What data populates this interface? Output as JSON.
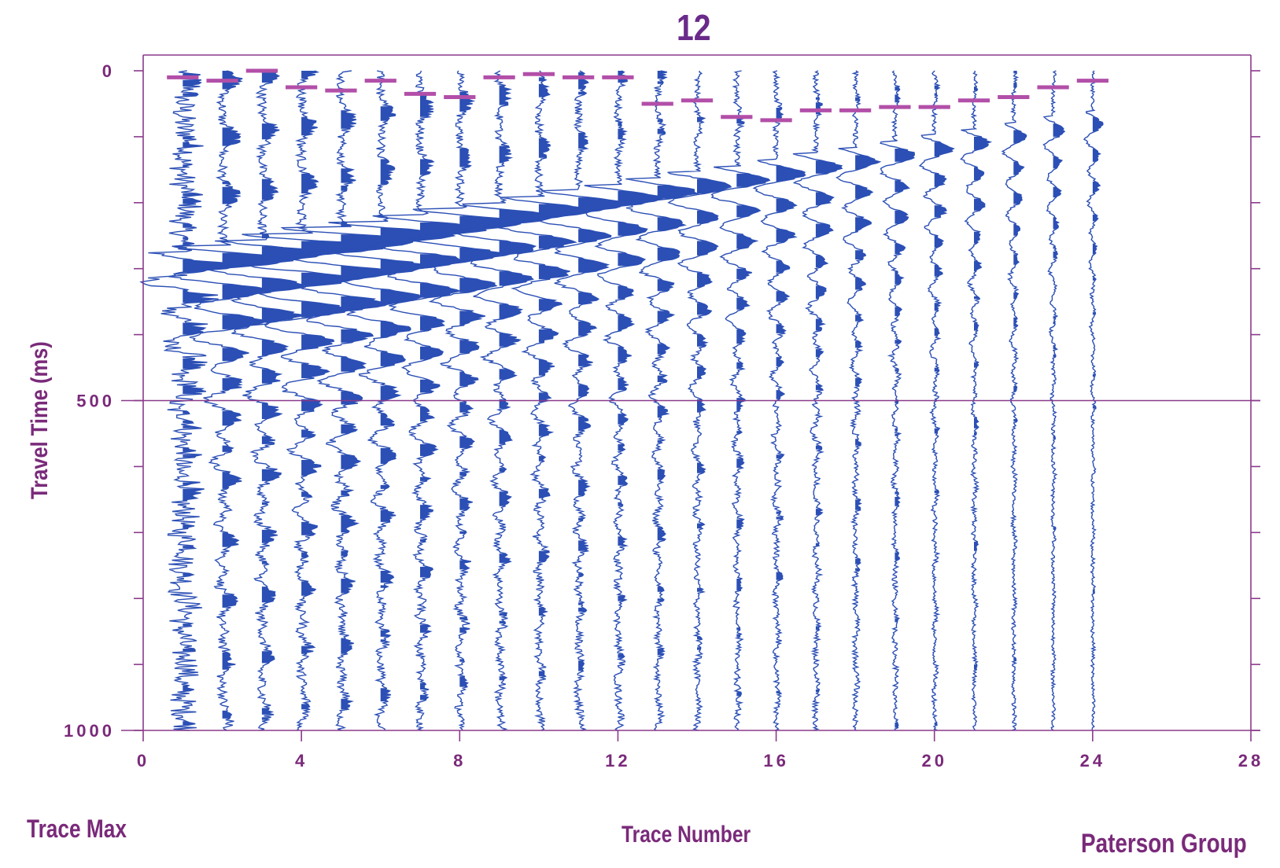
{
  "chart_data": {
    "type": "seismogram",
    "title": "12",
    "xlabel": "Trace Number",
    "ylabel": "Travel Time (ms)",
    "bottom_left_text": "Trace Max",
    "bottom_right_text": "Paterson Group",
    "x_range": [
      0,
      28
    ],
    "x_ticks": [
      0,
      4,
      8,
      12,
      16,
      20,
      24,
      28
    ],
    "y_range": [
      0,
      1000
    ],
    "y_inverted": true,
    "y_tick_labels": [
      0,
      500,
      1000
    ],
    "y_minor_ticks": [
      100,
      200,
      300,
      400,
      600,
      700,
      800,
      900
    ],
    "reference_line_ms": 500,
    "traces": [
      1,
      2,
      3,
      4,
      5,
      6,
      7,
      8,
      9,
      10,
      11,
      12,
      13,
      14,
      15,
      16,
      17,
      18,
      19,
      20,
      21,
      22,
      23,
      24
    ],
    "first_break_picks_ms": [
      {
        "trace": 1,
        "time": 10
      },
      {
        "trace": 2,
        "time": 15
      },
      {
        "trace": 3,
        "time": 0
      },
      {
        "trace": 4,
        "time": 25
      },
      {
        "trace": 5,
        "time": 30
      },
      {
        "trace": 6,
        "time": 15
      },
      {
        "trace": 7,
        "time": 35
      },
      {
        "trace": 8,
        "time": 40
      },
      {
        "trace": 9,
        "time": 10
      },
      {
        "trace": 10,
        "time": 5
      },
      {
        "trace": 11,
        "time": 10
      },
      {
        "trace": 12,
        "time": 10
      },
      {
        "trace": 13,
        "time": 50
      },
      {
        "trace": 14,
        "time": 45
      },
      {
        "trace": 15,
        "time": 70
      },
      {
        "trace": 16,
        "time": 75
      },
      {
        "trace": 17,
        "time": 60
      },
      {
        "trace": 18,
        "time": 60
      },
      {
        "trace": 19,
        "time": 55
      },
      {
        "trace": 20,
        "time": 55
      },
      {
        "trace": 21,
        "time": 45
      },
      {
        "trace": 22,
        "time": 40
      },
      {
        "trace": 23,
        "time": 25
      },
      {
        "trace": 24,
        "time": 15
      }
    ],
    "colors": {
      "trace": "#2b4fb5",
      "axis": "#8a3a8a",
      "picks": "#b24fa8",
      "label": "#7a2a7a"
    },
    "grid": false
  }
}
